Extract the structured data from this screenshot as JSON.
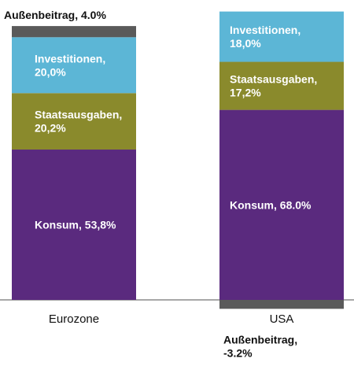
{
  "chart_data": {
    "type": "bar",
    "stacked": true,
    "categories": [
      "Eurozone",
      "USA"
    ],
    "series": [
      {
        "name": "Konsum",
        "values": [
          53.8,
          68.0
        ],
        "color": "#5a2a7e"
      },
      {
        "name": "Staatsausgaben",
        "values": [
          20.2,
          17.2
        ],
        "color": "#8a8a2c"
      },
      {
        "name": "Investitionen",
        "values": [
          20.0,
          18.0
        ],
        "color": "#5cb6d6"
      },
      {
        "name": "Außenbeitrag",
        "values": [
          4.0,
          -3.2
        ],
        "color": "#5a5a5a"
      }
    ],
    "data_labels": {
      "Eurozone": {
        "Konsum": "Konsum, 53,8%",
        "Staatsausgaben": [
          "Staatsausgaben,",
          "20,2%"
        ],
        "Investitionen": [
          "Investitionen,",
          "20,0%"
        ],
        "Außenbeitrag": "Außenbeitrag, 4.0%"
      },
      "USA": {
        "Konsum": "Konsum, 68.0%",
        "Staatsausgaben": [
          "Staatsausgaben,",
          "17,2%"
        ],
        "Investitionen": [
          "Investitionen,",
          "18,0%"
        ],
        "Außenbeitrag": [
          "Außenbeitrag,",
          "-3.2%"
        ]
      }
    },
    "grid": false,
    "legend": "none"
  }
}
